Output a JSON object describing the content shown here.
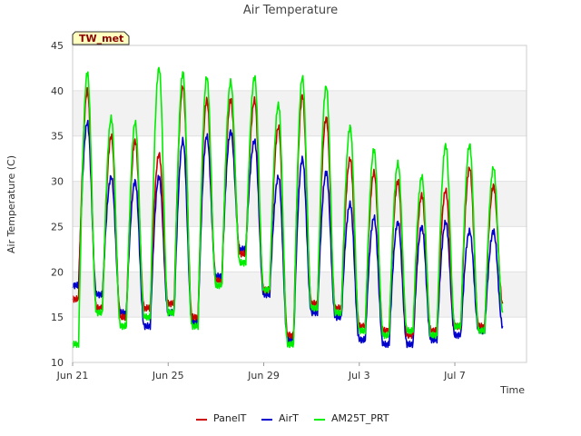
{
  "chart_data": {
    "type": "line",
    "title": "Air Temperature",
    "xlabel": "Time",
    "ylabel": "Air Temperature (C)",
    "badge": "TW_met",
    "ylim": [
      10,
      45
    ],
    "yticks": [
      10,
      15,
      20,
      25,
      30,
      35,
      40,
      45
    ],
    "xlim": [
      "2023-06-21",
      "2023-07-10"
    ],
    "xticks": [
      {
        "date": "2023-06-21",
        "label": "Jun 21"
      },
      {
        "date": "2023-06-25",
        "label": "Jun 25"
      },
      {
        "date": "2023-06-29",
        "label": "Jun 29"
      },
      {
        "date": "2023-07-03",
        "label": "Jul 3"
      },
      {
        "date": "2023-07-07",
        "label": "Jul 7"
      }
    ],
    "grid": true,
    "legend_position": "bottom",
    "daily": [
      {
        "date": "2023-06-21",
        "PanelT": [
          17.0,
          40.0
        ],
        "AirT": [
          18.5,
          36.5
        ],
        "AM25T_PRT": [
          12.0,
          42.0
        ]
      },
      {
        "date": "2023-06-22",
        "PanelT": [
          16.0,
          35.0
        ],
        "AirT": [
          17.5,
          30.5
        ],
        "AM25T_PRT": [
          15.5,
          37.0
        ]
      },
      {
        "date": "2023-06-23",
        "PanelT": [
          15.0,
          34.5
        ],
        "AirT": [
          15.5,
          30.0
        ],
        "AM25T_PRT": [
          14.0,
          36.5
        ]
      },
      {
        "date": "2023-06-24",
        "PanelT": [
          16.0,
          33.0
        ],
        "AirT": [
          14.0,
          30.5
        ],
        "AM25T_PRT": [
          15.0,
          42.5
        ]
      },
      {
        "date": "2023-06-25",
        "PanelT": [
          16.5,
          40.5
        ],
        "AirT": [
          15.5,
          34.5
        ],
        "AM25T_PRT": [
          15.5,
          42.0
        ]
      },
      {
        "date": "2023-06-26",
        "PanelT": [
          15.0,
          39.0
        ],
        "AirT": [
          14.5,
          35.0
        ],
        "AM25T_PRT": [
          14.0,
          41.5
        ]
      },
      {
        "date": "2023-06-27",
        "PanelT": [
          19.0,
          39.0
        ],
        "AirT": [
          19.5,
          35.5
        ],
        "AM25T_PRT": [
          18.5,
          41.0
        ]
      },
      {
        "date": "2023-06-28",
        "PanelT": [
          22.0,
          39.0
        ],
        "AirT": [
          22.5,
          34.5
        ],
        "AM25T_PRT": [
          21.0,
          41.5
        ]
      },
      {
        "date": "2023-06-29",
        "PanelT": [
          18.0,
          36.0
        ],
        "AirT": [
          17.5,
          30.5
        ],
        "AM25T_PRT": [
          18.0,
          38.5
        ]
      },
      {
        "date": "2023-06-30",
        "PanelT": [
          13.0,
          39.5
        ],
        "AirT": [
          12.5,
          32.5
        ],
        "AM25T_PRT": [
          12.0,
          41.5
        ]
      },
      {
        "date": "2023-07-01",
        "PanelT": [
          16.5,
          37.0
        ],
        "AirT": [
          15.5,
          31.0
        ],
        "AM25T_PRT": [
          16.0,
          40.5
        ]
      },
      {
        "date": "2023-07-02",
        "PanelT": [
          16.0,
          32.5
        ],
        "AirT": [
          15.0,
          27.5
        ],
        "AM25T_PRT": [
          15.5,
          36.0
        ]
      },
      {
        "date": "2023-07-03",
        "PanelT": [
          14.0,
          31.0
        ],
        "AirT": [
          12.5,
          26.0
        ],
        "AM25T_PRT": [
          13.5,
          33.5
        ]
      },
      {
        "date": "2023-07-04",
        "PanelT": [
          13.5,
          30.0
        ],
        "AirT": [
          12.0,
          25.5
        ],
        "AM25T_PRT": [
          13.0,
          32.0
        ]
      },
      {
        "date": "2023-07-05",
        "PanelT": [
          13.0,
          28.5
        ],
        "AirT": [
          12.0,
          25.0
        ],
        "AM25T_PRT": [
          13.5,
          30.5
        ]
      },
      {
        "date": "2023-07-06",
        "PanelT": [
          13.5,
          29.0
        ],
        "AirT": [
          12.5,
          25.5
        ],
        "AM25T_PRT": [
          13.0,
          34.0
        ]
      },
      {
        "date": "2023-07-07",
        "PanelT": [
          14.0,
          31.5
        ],
        "AirT": [
          13.0,
          24.5
        ],
        "AM25T_PRT": [
          14.0,
          34.0
        ]
      },
      {
        "date": "2023-07-08",
        "PanelT": [
          14.0,
          29.5
        ],
        "AirT": [
          13.5,
          24.5
        ],
        "AM25T_PRT": [
          13.5,
          31.5
        ]
      },
      {
        "date": "2023-07-09",
        "PanelT": [
          16.5,
          16.5
        ],
        "AirT": [
          14.0,
          14.0
        ],
        "AM25T_PRT": [
          15.5,
          15.5
        ]
      }
    ],
    "series": [
      {
        "name": "PanelT",
        "color": "#cc0000"
      },
      {
        "name": "AirT",
        "color": "#0000cc"
      },
      {
        "name": "AM25T_PRT",
        "color": "#00ee00"
      }
    ]
  }
}
